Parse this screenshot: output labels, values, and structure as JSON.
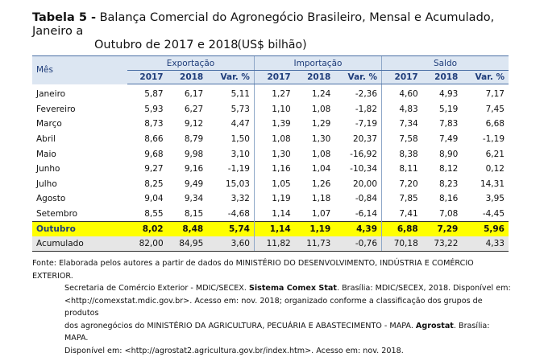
{
  "title": {
    "label": "Tabela 5 -",
    "text_line1": "Balança Comercial do Agronegócio Brasileiro, Mensal e Acumulado, Janeiro a",
    "text_line2": "Outubro de 2017 e 2018"
  },
  "unit": "(US$ bilhão)",
  "table": {
    "col_mes": "Mês",
    "groups": [
      "Exportação",
      "Importação",
      "Saldo"
    ],
    "subcols": [
      "2017",
      "2018",
      "Var. %"
    ],
    "rows": [
      {
        "mes": "Janeiro",
        "v": [
          "5,87",
          "6,17",
          "5,11",
          "1,27",
          "1,24",
          "-2,36",
          "4,60",
          "4,93",
          "7,17"
        ]
      },
      {
        "mes": "Fevereiro",
        "v": [
          "5,93",
          "6,27",
          "5,73",
          "1,10",
          "1,08",
          "-1,82",
          "4,83",
          "5,19",
          "7,45"
        ]
      },
      {
        "mes": "Março",
        "v": [
          "8,73",
          "9,12",
          "4,47",
          "1,39",
          "1,29",
          "-7,19",
          "7,34",
          "7,83",
          "6,68"
        ]
      },
      {
        "mes": "Abril",
        "v": [
          "8,66",
          "8,79",
          "1,50",
          "1,08",
          "1,30",
          "20,37",
          "7,58",
          "7,49",
          "-1,19"
        ]
      },
      {
        "mes": "Maio",
        "v": [
          "9,68",
          "9,98",
          "3,10",
          "1,30",
          "1,08",
          "-16,92",
          "8,38",
          "8,90",
          "6,21"
        ]
      },
      {
        "mes": "Junho",
        "v": [
          "9,27",
          "9,16",
          "-1,19",
          "1,16",
          "1,04",
          "-10,34",
          "8,11",
          "8,12",
          "0,12"
        ]
      },
      {
        "mes": "Julho",
        "v": [
          "8,25",
          "9,49",
          "15,03",
          "1,05",
          "1,26",
          "20,00",
          "7,20",
          "8,23",
          "14,31"
        ]
      },
      {
        "mes": "Agosto",
        "v": [
          "9,04",
          "9,34",
          "3,32",
          "1,19",
          "1,18",
          "-0,84",
          "7,85",
          "8,16",
          "3,95"
        ]
      },
      {
        "mes": "Setembro",
        "v": [
          "8,55",
          "8,15",
          "-4,68",
          "1,14",
          "1,07",
          "-6,14",
          "7,41",
          "7,08",
          "-4,45"
        ]
      }
    ],
    "highlight_row": {
      "mes": "Outubro",
      "v": [
        "8,02",
        "8,48",
        "5,74",
        "1,14",
        "1,19",
        "4,39",
        "6,88",
        "7,29",
        "5,96"
      ]
    },
    "total_row": {
      "mes": "Acumulado",
      "v": [
        "82,00",
        "84,95",
        "3,60",
        "11,82",
        "11,73",
        "-0,76",
        "70,18",
        "73,22",
        "4,33"
      ]
    }
  },
  "source": {
    "l1": "Fonte: Elaborada pelos autores a partir de dados do MINISTÉRIO DO DESENVOLVIMENTO, INDÚSTRIA E COMÉRCIO EXTERIOR.",
    "l2a": "Secretaria de Comércio Exterior - MDIC/SECEX. ",
    "l2b": "Sistema Comex Stat",
    "l2c": ". Brasília: MDIC/SECEX, 2018. Disponível em:",
    "l3": "<http://comexstat.mdic.gov.br>. Acesso em: nov. 2018; organizado conforme a classificação dos grupos de produtos",
    "l4a": "dos agronegócios do MINISTÉRIO DA AGRICULTURA, PECUÁRIA E ABASTECIMENTO - MAPA. ",
    "l4b": "Agrostat",
    "l4c": ". Brasília: MAPA.",
    "l5": "Disponível em: <http://agrostat2.agricultura.gov.br/index.htm>. Acesso em: nov. 2018."
  },
  "colors": {
    "header_bg": "#dce6f2",
    "header_text": "#1f3d7a",
    "highlight": "#ffff00",
    "total_bg": "#e6e6e6"
  }
}
